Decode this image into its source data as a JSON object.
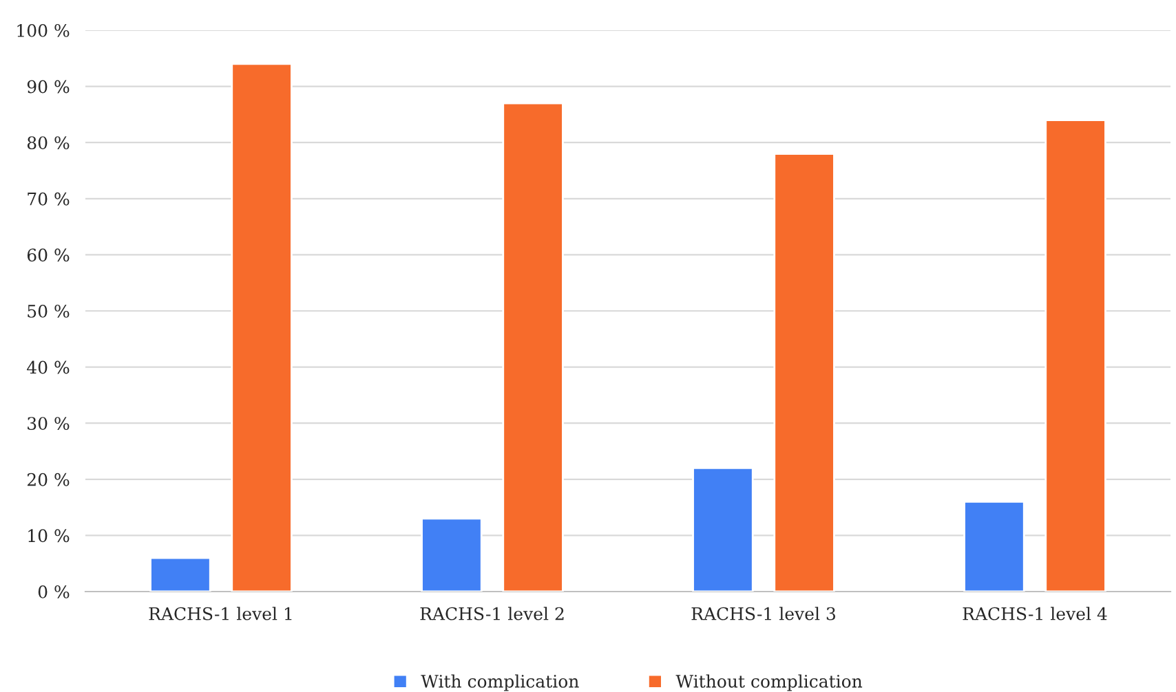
{
  "chart_data": {
    "type": "bar",
    "categories": [
      "RACHS-1 level 1",
      "RACHS-1 level 2",
      "RACHS-1 level 3",
      "RACHS-1 level 4"
    ],
    "series": [
      {
        "name": "With complication",
        "color": "#4180f5",
        "values": [
          6,
          13,
          22,
          16
        ]
      },
      {
        "name": "Without complication",
        "color": "#f76b2b",
        "values": [
          94,
          87,
          78,
          84
        ]
      }
    ],
    "ylim": [
      0,
      100
    ],
    "yticks": [
      {
        "value": 0,
        "label": "0 %"
      },
      {
        "value": 10,
        "label": "10 %"
      },
      {
        "value": 20,
        "label": "20 %"
      },
      {
        "value": 30,
        "label": "30 %"
      },
      {
        "value": 40,
        "label": "40 %"
      },
      {
        "value": 50,
        "label": "50 %"
      },
      {
        "value": 60,
        "label": "60 %"
      },
      {
        "value": 70,
        "label": "70 %"
      },
      {
        "value": 80,
        "label": "80 %"
      },
      {
        "value": 90,
        "label": "90 %"
      },
      {
        "value": 100,
        "label": "100 %"
      }
    ],
    "grid": "y",
    "legend": "bottom"
  }
}
